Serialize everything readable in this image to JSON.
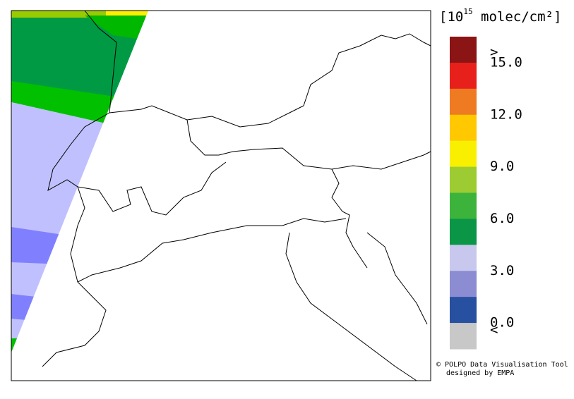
{
  "colorbar": {
    "title_prefix": "[10",
    "title_exponent": "15",
    "title_suffix": " molec/cm²]",
    "colors": [
      "#8b1414",
      "#e8201c",
      "#ee7a22",
      "#ffc800",
      "#f8f000",
      "#9ccc32",
      "#3cb43c",
      "#0a9646",
      "#c8c8ee",
      "#8c8cd2",
      "#2850a0",
      "#c8c8c8"
    ],
    "labels": [
      ">",
      "15.0",
      "12.0",
      "9.0",
      "6.0",
      "3.0",
      "0.0",
      "<"
    ]
  },
  "credit": {
    "line1": "© POLPO Data Visualisation Tool",
    "line2": "designed by EMPA"
  }
}
